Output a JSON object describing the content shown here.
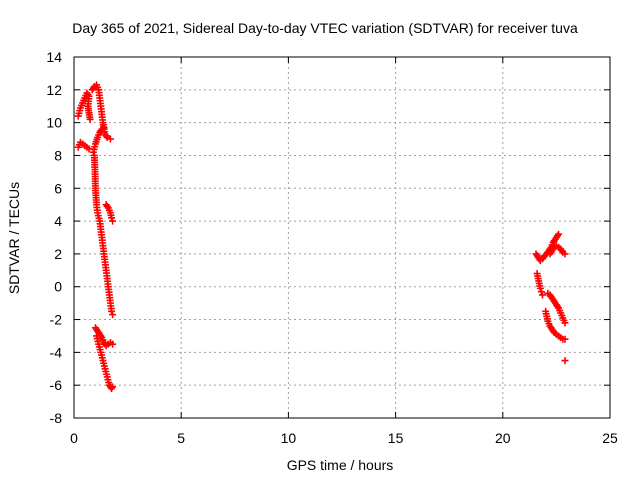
{
  "chart_data": {
    "type": "scatter",
    "title": "Day 365 of 2021, Sidereal Day-to-day VTEC variation (SDTVAR) for receiver tuva",
    "xlabel": "GPS time / hours",
    "ylabel": "SDTVAR / TECUs",
    "xlim": [
      0,
      25
    ],
    "ylim": [
      -8,
      14
    ],
    "xticks": [
      0,
      5,
      10,
      15,
      20,
      25
    ],
    "yticks": [
      -8,
      -6,
      -4,
      -2,
      0,
      2,
      4,
      6,
      8,
      10,
      12,
      14
    ],
    "grid": true,
    "marker": "plus",
    "color": "#ff0000",
    "segments": [
      [
        [
          0.2,
          10.4
        ],
        [
          0.3,
          10.9
        ],
        [
          0.4,
          11.2
        ],
        [
          0.5,
          11.5
        ],
        [
          0.6,
          11.8
        ],
        [
          0.7,
          11.6
        ],
        [
          0.65,
          11.0
        ],
        [
          0.7,
          10.6
        ],
        [
          0.75,
          10.2
        ]
      ],
      [
        [
          0.2,
          8.5
        ],
        [
          0.3,
          8.8
        ],
        [
          0.4,
          8.7
        ],
        [
          0.5,
          8.6
        ],
        [
          0.6,
          8.5
        ],
        [
          0.7,
          8.4
        ]
      ],
      [
        [
          0.85,
          12.0
        ],
        [
          0.95,
          12.2
        ],
        [
          1.05,
          12.3
        ],
        [
          1.15,
          12.0
        ],
        [
          1.2,
          11.5
        ],
        [
          1.25,
          11.0
        ],
        [
          1.3,
          10.5
        ],
        [
          1.35,
          10.0
        ],
        [
          1.4,
          9.6
        ],
        [
          1.45,
          9.3
        ],
        [
          1.55,
          9.1
        ],
        [
          1.7,
          9.0
        ]
      ],
      [
        [
          0.9,
          8.2
        ],
        [
          1.0,
          8.7
        ],
        [
          1.1,
          9.1
        ],
        [
          1.2,
          9.4
        ],
        [
          1.3,
          9.6
        ],
        [
          1.4,
          9.7
        ]
      ],
      [
        [
          0.95,
          8.0
        ],
        [
          0.98,
          7.0
        ],
        [
          1.0,
          6.0
        ],
        [
          1.05,
          5.0
        ],
        [
          1.1,
          4.5
        ],
        [
          1.2,
          4.0
        ],
        [
          1.25,
          3.5
        ],
        [
          1.3,
          3.0
        ],
        [
          1.35,
          2.5
        ],
        [
          1.4,
          2.0
        ],
        [
          1.45,
          1.5
        ],
        [
          1.5,
          1.0
        ],
        [
          1.55,
          0.5
        ],
        [
          1.6,
          0.0
        ],
        [
          1.65,
          -0.5
        ],
        [
          1.7,
          -1.0
        ],
        [
          1.75,
          -1.5
        ],
        [
          1.8,
          -1.7
        ]
      ],
      [
        [
          1.5,
          5.0
        ],
        [
          1.6,
          4.8
        ],
        [
          1.7,
          4.5
        ],
        [
          1.75,
          4.2
        ],
        [
          1.8,
          4.0
        ]
      ],
      [
        [
          1.0,
          -2.5
        ],
        [
          1.1,
          -2.7
        ],
        [
          1.2,
          -2.9
        ],
        [
          1.3,
          -3.1
        ],
        [
          1.4,
          -3.4
        ],
        [
          1.5,
          -3.6
        ],
        [
          1.6,
          -3.5
        ],
        [
          1.7,
          -3.4
        ],
        [
          1.8,
          -3.5
        ]
      ],
      [
        [
          1.05,
          -3.0
        ],
        [
          1.15,
          -3.5
        ],
        [
          1.25,
          -4.0
        ],
        [
          1.35,
          -4.5
        ],
        [
          1.45,
          -5.0
        ],
        [
          1.55,
          -5.5
        ],
        [
          1.65,
          -6.0
        ],
        [
          1.75,
          -6.2
        ],
        [
          1.8,
          -6.1
        ]
      ],
      [
        [
          21.55,
          2.0
        ],
        [
          21.65,
          1.8
        ],
        [
          21.75,
          1.6
        ],
        [
          21.85,
          1.7
        ],
        [
          21.95,
          1.9
        ],
        [
          22.05,
          2.0
        ],
        [
          22.15,
          2.2
        ],
        [
          22.25,
          2.4
        ],
        [
          22.35,
          2.7
        ],
        [
          22.45,
          2.9
        ],
        [
          22.55,
          3.1
        ],
        [
          22.6,
          3.2
        ]
      ],
      [
        [
          22.2,
          2.0
        ],
        [
          22.3,
          2.2
        ],
        [
          22.4,
          2.4
        ],
        [
          22.5,
          2.5
        ],
        [
          22.6,
          2.4
        ],
        [
          22.7,
          2.3
        ],
        [
          22.8,
          2.1
        ],
        [
          22.9,
          2.0
        ]
      ],
      [
        [
          21.6,
          0.8
        ],
        [
          21.65,
          0.5
        ],
        [
          21.7,
          0.2
        ],
        [
          21.75,
          -0.1
        ],
        [
          21.8,
          -0.3
        ],
        [
          21.85,
          -0.5
        ]
      ],
      [
        [
          22.1,
          -0.4
        ],
        [
          22.2,
          -0.5
        ],
        [
          22.3,
          -0.7
        ],
        [
          22.4,
          -0.9
        ],
        [
          22.5,
          -1.1
        ],
        [
          22.6,
          -1.3
        ],
        [
          22.7,
          -1.6
        ],
        [
          22.8,
          -1.9
        ],
        [
          22.9,
          -2.2
        ]
      ],
      [
        [
          22.0,
          -1.5
        ],
        [
          22.05,
          -1.8
        ],
        [
          22.1,
          -2.1
        ],
        [
          22.2,
          -2.4
        ],
        [
          22.3,
          -2.6
        ],
        [
          22.4,
          -2.8
        ],
        [
          22.5,
          -2.9
        ],
        [
          22.6,
          -3.0
        ],
        [
          22.7,
          -3.1
        ],
        [
          22.8,
          -3.2
        ],
        [
          22.9,
          -3.2
        ]
      ],
      [
        [
          22.9,
          -4.5
        ]
      ]
    ]
  }
}
